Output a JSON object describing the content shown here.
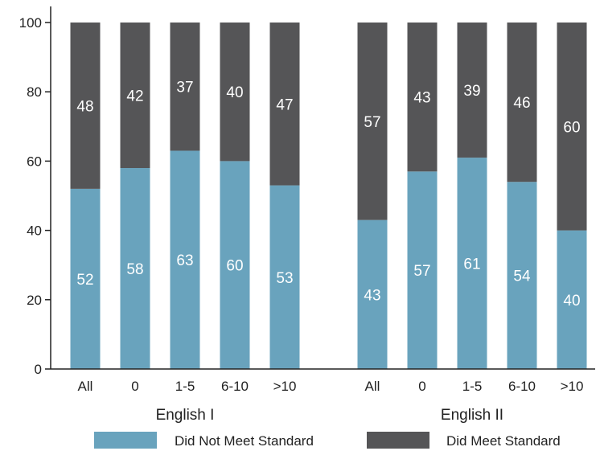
{
  "chart_data": {
    "type": "bar",
    "stacked": true,
    "title": "",
    "xlabel": "",
    "ylabel": "",
    "ylim": [
      0,
      100
    ],
    "yticks": [
      0,
      20,
      40,
      60,
      80,
      100
    ],
    "grid": false,
    "legend_position": "bottom",
    "groups": [
      {
        "label": "English I",
        "categories": [
          "All",
          "0",
          "1-5",
          "6-10",
          ">10"
        ],
        "not_met": [
          52,
          58,
          63,
          60,
          53
        ],
        "met": [
          48,
          42,
          37,
          40,
          47
        ]
      },
      {
        "label": "English II",
        "categories": [
          "All",
          "0",
          "1-5",
          "6-10",
          ">10"
        ],
        "not_met": [
          43,
          57,
          61,
          54,
          40
        ],
        "met": [
          57,
          43,
          39,
          46,
          60
        ]
      }
    ],
    "series": [
      {
        "name": "Did Not Meet Standard",
        "key": "not_met",
        "color": "#69a3bd"
      },
      {
        "name": "Did Meet Standard",
        "key": "met",
        "color": "#555557"
      }
    ]
  }
}
